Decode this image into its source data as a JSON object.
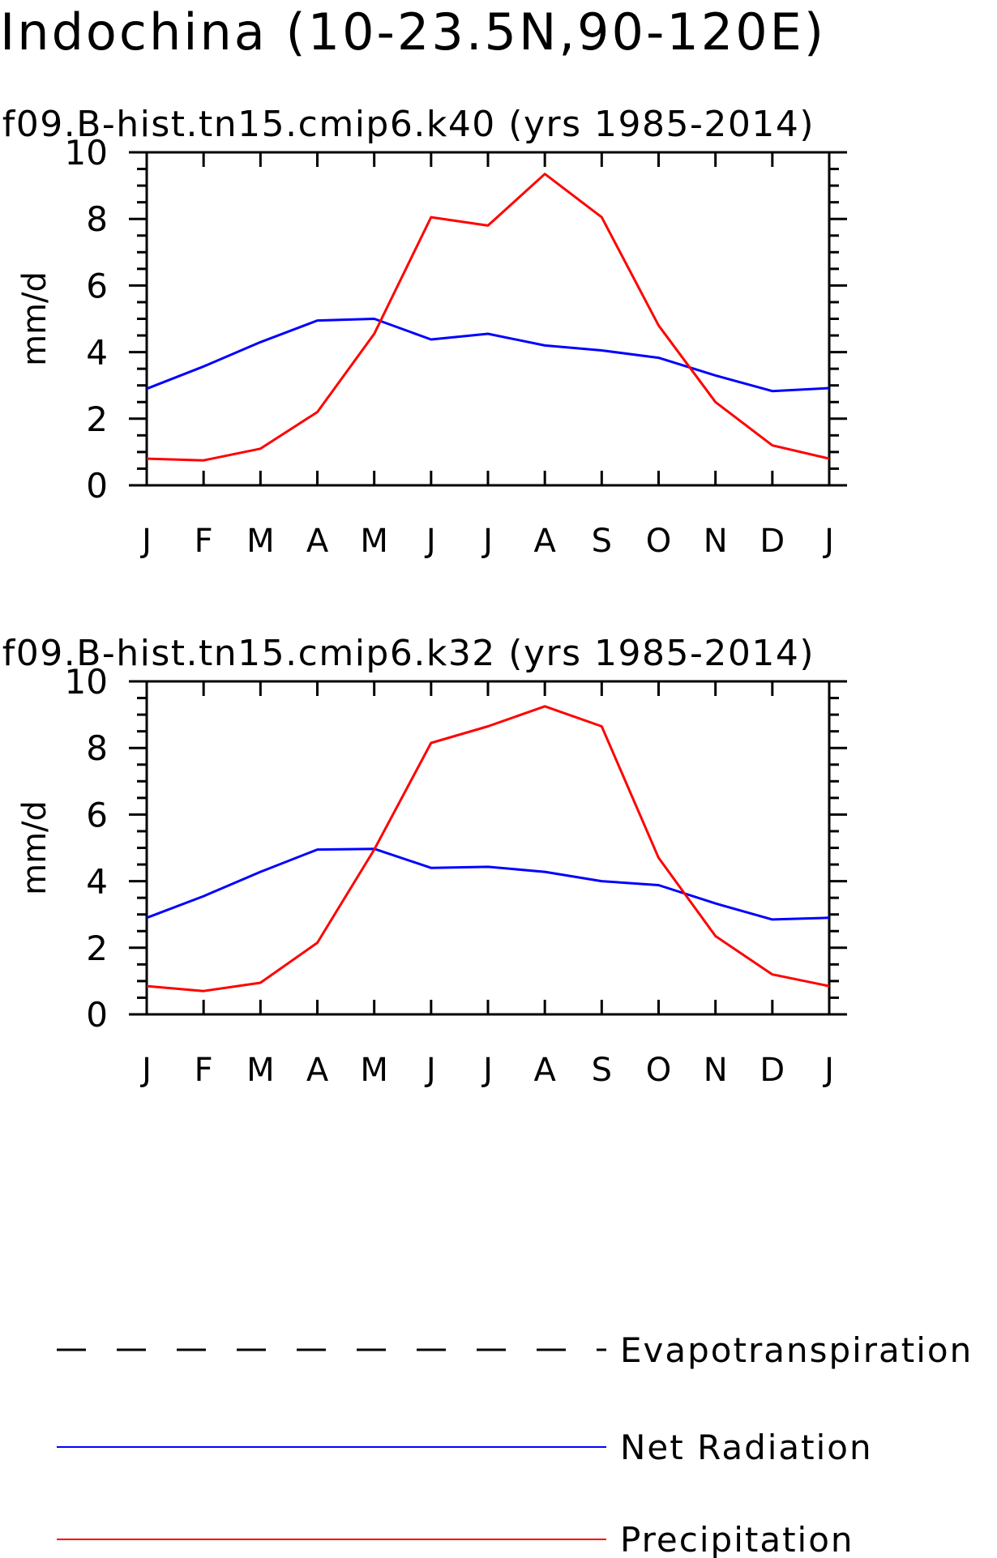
{
  "title": "Indochina (10-23.5N,90-120E)",
  "legend": [
    {
      "label": "Evapotranspiration",
      "color": "#000000",
      "style": "dashed"
    },
    {
      "label": "Net Radiation",
      "color": "#0000ff",
      "style": "solid"
    },
    {
      "label": "Precipitation",
      "color": "#ff0000",
      "style": "solid"
    }
  ],
  "chart_data": [
    {
      "type": "line",
      "title": "f09.B-hist.tn15.cmip6.k40 (yrs 1985-2014)",
      "ylabel": "mm/d",
      "xlabel": "",
      "categories": [
        "J",
        "F",
        "M",
        "A",
        "M",
        "J",
        "J",
        "A",
        "S",
        "O",
        "N",
        "D",
        "J"
      ],
      "ylim": [
        0,
        10
      ],
      "yticks": [
        0,
        2,
        4,
        6,
        8,
        10
      ],
      "series": [
        {
          "name": "Net Radiation",
          "color": "#0000ff",
          "values": [
            2.9,
            3.57,
            4.3,
            4.95,
            5.0,
            4.38,
            4.55,
            4.2,
            4.05,
            3.83,
            3.3,
            2.83,
            2.92
          ]
        },
        {
          "name": "Precipitation",
          "color": "#ff0000",
          "values": [
            0.8,
            0.75,
            1.1,
            2.2,
            4.55,
            8.05,
            7.8,
            9.35,
            8.05,
            4.8,
            2.5,
            1.2,
            0.8
          ]
        }
      ]
    },
    {
      "type": "line",
      "title": "f09.B-hist.tn15.cmip6.k32 (yrs 1985-2014)",
      "ylabel": "mm/d",
      "xlabel": "",
      "categories": [
        "J",
        "F",
        "M",
        "A",
        "M",
        "J",
        "J",
        "A",
        "S",
        "O",
        "N",
        "D",
        "J"
      ],
      "ylim": [
        0,
        10
      ],
      "yticks": [
        0,
        2,
        4,
        6,
        8,
        10
      ],
      "series": [
        {
          "name": "Net Radiation",
          "color": "#0000ff",
          "values": [
            2.9,
            3.55,
            4.28,
            4.95,
            4.97,
            4.4,
            4.43,
            4.28,
            4.0,
            3.88,
            3.33,
            2.85,
            2.9
          ]
        },
        {
          "name": "Precipitation",
          "color": "#ff0000",
          "values": [
            0.85,
            0.7,
            0.95,
            2.15,
            4.95,
            8.15,
            8.65,
            9.25,
            8.65,
            4.7,
            2.35,
            1.2,
            0.85
          ]
        }
      ]
    }
  ]
}
